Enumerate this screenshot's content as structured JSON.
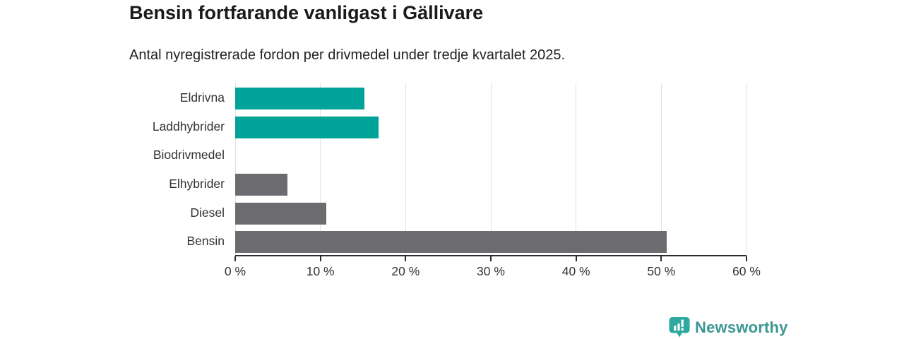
{
  "title": "Bensin fortfarande vanligast i Gällivare",
  "subtitle": "Antal nyregistrerade fordon per drivmedel under tredje kvartalet 2025.",
  "branding": {
    "name": "Newsworthy",
    "icon": "newsworthy-bubble-barchart-icon",
    "icon_color": "#2fa8a0",
    "text_color": "#3d9693"
  },
  "colors": {
    "teal_bar": "#00a398",
    "gray_bar": "#6b6b70",
    "gridline": "#e2e2e2",
    "axis": "#2b2b2b",
    "tick_text": "#333333",
    "category_text": "#333333",
    "title_text": "#1a1a1a"
  },
  "chart_data": {
    "type": "bar",
    "orientation": "horizontal",
    "title": "Bensin fortfarande vanligast i Gällivare",
    "subtitle": "Antal nyregistrerade fordon per drivmedel under tredje kvartalet 2025.",
    "categories": [
      "Eldrivna",
      "Laddhybrider",
      "Biodrivmedel",
      "Elhybrider",
      "Diesel",
      "Bensin"
    ],
    "values": [
      15.2,
      16.8,
      0,
      6.1,
      10.7,
      50.6
    ],
    "unit": "%",
    "bar_colors": [
      "#00a398",
      "#00a398",
      "#00a398",
      "#6b6b70",
      "#6b6b70",
      "#6b6b70"
    ],
    "xlabel": "",
    "ylabel": "",
    "xlim": [
      0,
      60
    ],
    "xticks": [
      0,
      10,
      20,
      30,
      40,
      50,
      60
    ],
    "xtick_labels": [
      "0 %",
      "10 %",
      "20 %",
      "30 %",
      "40 %",
      "50 %",
      "60 %"
    ],
    "grid": true,
    "legend": false
  }
}
